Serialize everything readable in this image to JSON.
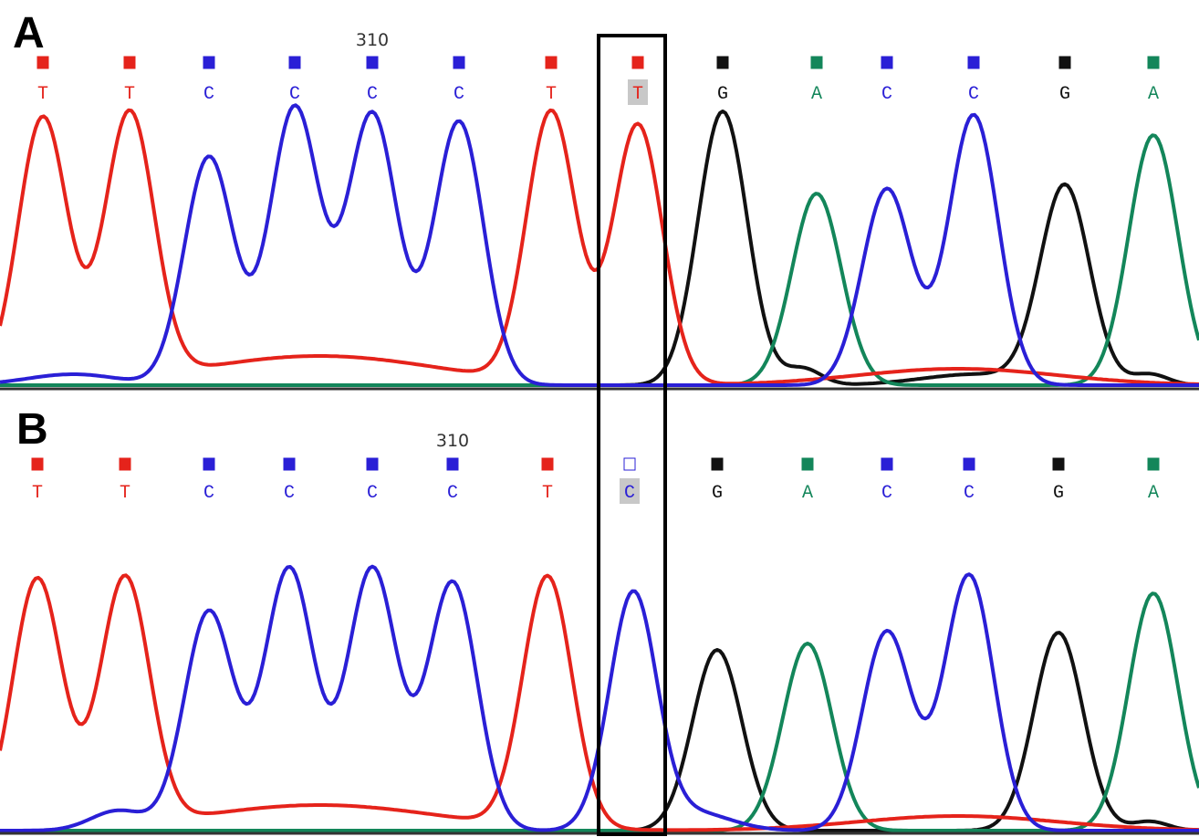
{
  "colors": {
    "T": "#e5231b",
    "C": "#2a1fd6",
    "G": "#111111",
    "A": "#13865a"
  },
  "panels": [
    {
      "label": "A",
      "position": "310",
      "bases": [
        "T",
        "T",
        "C",
        "C",
        "C",
        "C",
        "T",
        "T",
        "G",
        "A",
        "C",
        "C",
        "G",
        "A"
      ]
    },
    {
      "label": "B",
      "position": "310",
      "bases": [
        "T",
        "T",
        "C",
        "C",
        "C",
        "C",
        "T",
        "C",
        "G",
        "A",
        "C",
        "C",
        "G",
        "A"
      ]
    }
  ]
}
